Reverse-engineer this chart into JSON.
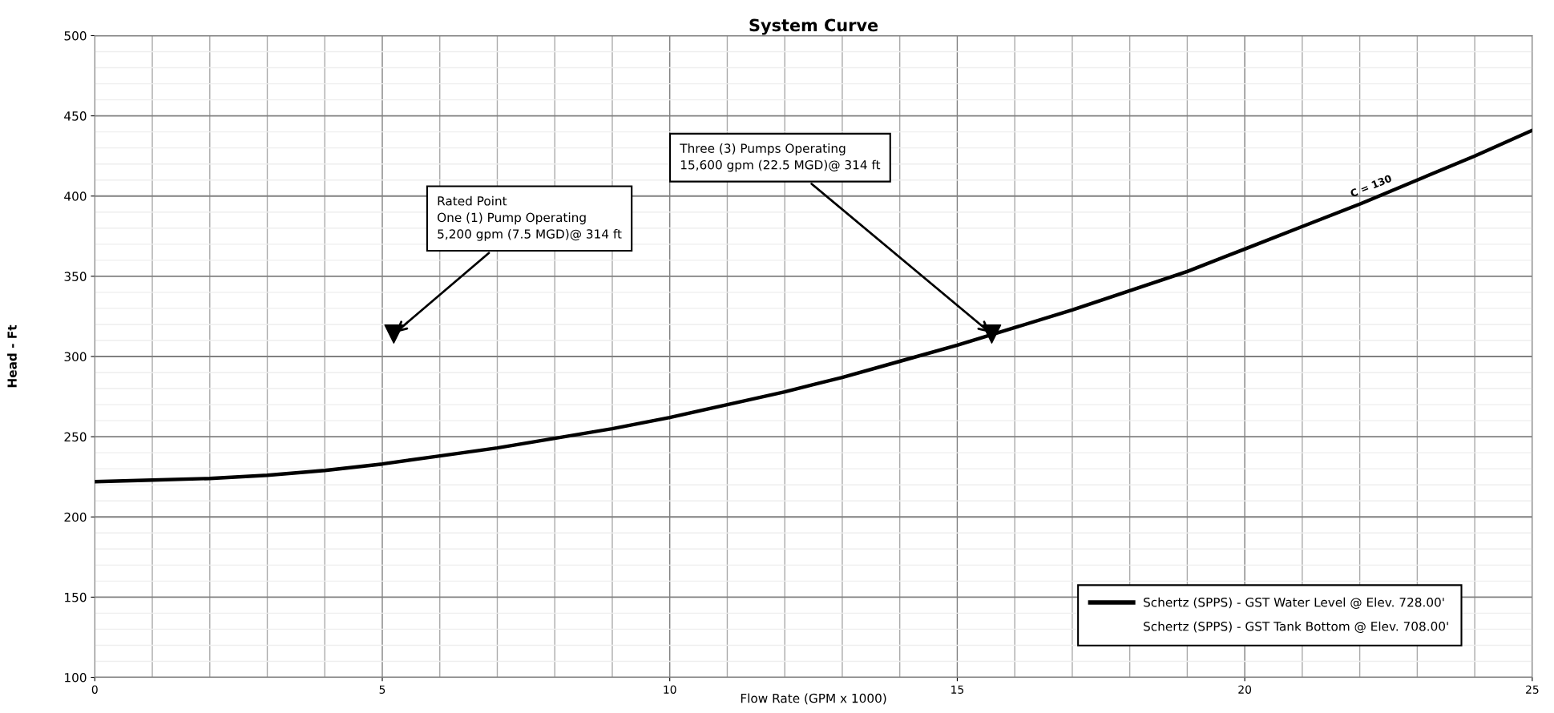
{
  "chart_data": {
    "type": "line",
    "title": "System Curve",
    "xlabel": "Flow Rate (GPM x 1000)",
    "ylabel": "Head - Ft",
    "x": [
      0,
      1,
      2,
      3,
      4,
      5,
      6,
      7,
      8,
      9,
      10,
      11,
      12,
      13,
      14,
      15,
      16,
      17,
      18,
      19,
      20,
      21,
      22,
      23,
      24,
      25
    ],
    "series": [
      {
        "name": "Schertz (SPPS) - GST Water Level @ Elev. 728.00'",
        "color": "#000000",
        "values": [
          222,
          223,
          224,
          226,
          229,
          233,
          238,
          243,
          249,
          255,
          262,
          270,
          278,
          287,
          297,
          307,
          318,
          329,
          341,
          353,
          367,
          381,
          395,
          410,
          425,
          441
        ]
      },
      {
        "name": "Schertz (SPPS) - GST Tank Bottom @ Elev. 708.00'",
        "values": [
          null,
          null,
          null,
          null,
          null,
          null,
          null,
          null,
          null,
          null,
          null,
          null,
          null,
          null,
          null,
          null,
          null,
          null,
          null,
          null,
          null,
          null,
          null,
          null,
          null,
          null
        ]
      },
      {
        "type": "scatter",
        "color": "#000000",
        "marker": "triangle",
        "x": [
          5.2,
          15.6
        ],
        "values": [
          314,
          314
        ]
      }
    ],
    "annotations": [
      {
        "text": "Rated Point\nOne (1) Pump Operating\n5,200 gpm (7.5 MGD)@ 314 ft",
        "x": 5.2,
        "y": 314
      },
      {
        "text": "Three (3) Pumps Operating\n15,600 gpm (22.5 MGD)@ 314 ft",
        "x": 15.6,
        "y": 314
      },
      {
        "text": "C = 130",
        "x": 22.2,
        "y": 398
      }
    ],
    "xlim": [
      0,
      25
    ],
    "xticks": [
      0,
      5,
      10,
      15,
      20,
      25
    ],
    "ylim": [
      100,
      500
    ],
    "yticks": [
      100,
      150,
      200,
      250,
      300,
      350,
      400,
      450,
      500
    ],
    "grid": true,
    "legend": "bottom right",
    "marker": "none",
    "line_style": "solid"
  }
}
